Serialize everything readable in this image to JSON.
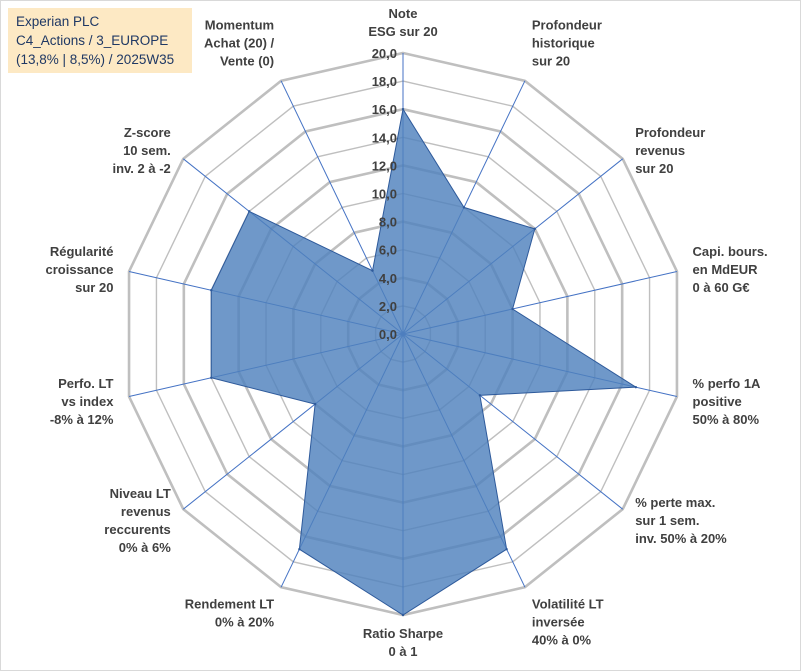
{
  "title_box": {
    "line1": "Experian PLC",
    "line2": "C4_Actions / 3_EUROPE",
    "line3": "(13,8% | 8,5%) / 2025W35"
  },
  "chart_data": {
    "type": "radar",
    "title": "Experian PLC",
    "subtitle": "C4_Actions / 3_EUROPE (13,8% | 8,5%) / 2025W35",
    "rlim": [
      0,
      20
    ],
    "r_ticks": [
      "0,0",
      "2,0",
      "4,0",
      "6,0",
      "8,0",
      "10,0",
      "12,0",
      "14,0",
      "16,0",
      "18,0",
      "20,0"
    ],
    "grid": true,
    "colors": {
      "fill": "#4f81bd",
      "stroke": "#2e5a9b",
      "grid": "#bfbfbf",
      "spoke": "#4472c4"
    },
    "axes": [
      {
        "label": [
          "Note",
          "ESG sur 20"
        ],
        "value": 16
      },
      {
        "label": [
          "Profondeur",
          "historique",
          "sur 20"
        ],
        "value": 10
      },
      {
        "label": [
          "Profondeur",
          "revenus",
          "sur 20"
        ],
        "value": 12
      },
      {
        "label": [
          "Capi. bours.",
          "en MdEUR",
          "0 à 60 G€"
        ],
        "value": 8
      },
      {
        "label": [
          "% perfo 1A",
          "positive",
          "50% à 80%"
        ],
        "value": 17
      },
      {
        "label": [
          "% perte max.",
          "sur 1 sem.",
          "inv. 50% à 20%"
        ],
        "value": 7
      },
      {
        "label": [
          "Volatilité LT",
          "inversée",
          "40% à 0%"
        ],
        "value": 17
      },
      {
        "label": [
          "Ratio Sharpe",
          "0 à 1"
        ],
        "value": 20
      },
      {
        "label": [
          "Rendement LT",
          "0% à 20%"
        ],
        "value": 17
      },
      {
        "label": [
          "Niveau LT",
          "revenus",
          "reccurents",
          "0% à 6%"
        ],
        "value": 8
      },
      {
        "label": [
          "Perfo. LT",
          "vs index",
          "-8% à 12%"
        ],
        "value": 14
      },
      {
        "label": [
          "Régularité",
          "croissance",
          "sur 20"
        ],
        "value": 14
      },
      {
        "label": [
          "Z-score",
          "10 sem.",
          "inv. 2 à -2"
        ],
        "value": 14
      },
      {
        "label": [
          "Momentum",
          "Achat (20) /",
          "Vente (0)"
        ],
        "value": 5
      }
    ]
  }
}
